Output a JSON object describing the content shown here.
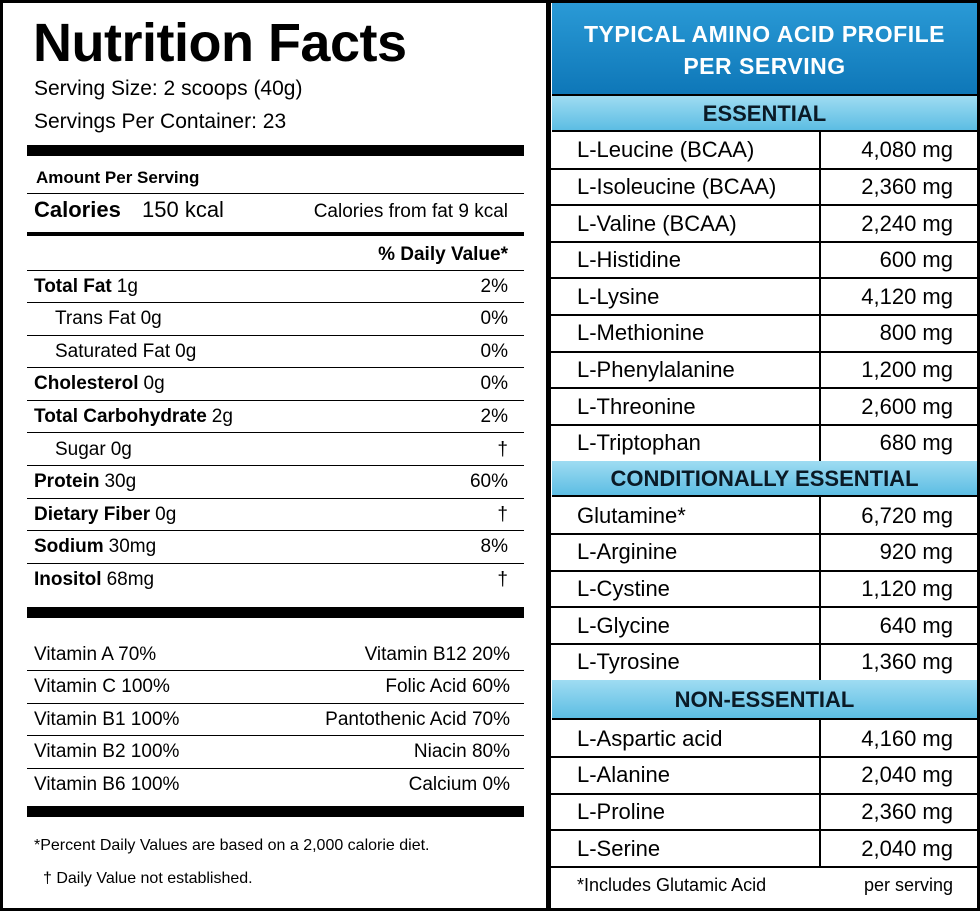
{
  "nutrition": {
    "title": "Nutrition Facts",
    "serving_size": "Serving Size: 2 scoops (40g)",
    "servings_per_container": "Servings Per Container: 23",
    "amount_per_serving": "Amount Per Serving",
    "calories_label": "Calories",
    "calories_value": "150 kcal",
    "calories_from_fat": "Calories from fat 9 kcal",
    "daily_value_header": "% Daily Value*",
    "rows": [
      {
        "name": "Total Fat",
        "amount": "1g",
        "dv": "2%",
        "indent": false
      },
      {
        "name": "Trans Fat",
        "amount": "0g",
        "dv": "0%",
        "indent": true
      },
      {
        "name": "Saturated Fat",
        "amount": "0g",
        "dv": "0%",
        "indent": true
      },
      {
        "name": "Cholesterol",
        "amount": "0g",
        "dv": "0%",
        "indent": false
      },
      {
        "name": "Total Carbohydrate",
        "amount": "2g",
        "dv": "2%",
        "indent": false
      },
      {
        "name": "Sugar",
        "amount": "0g",
        "dv": "†",
        "indent": true
      },
      {
        "name": "Protein",
        "amount": "30g",
        "dv": "60%",
        "indent": false
      },
      {
        "name": "Dietary Fiber",
        "amount": "0g",
        "dv": "†",
        "indent": false
      },
      {
        "name": "Sodium",
        "amount": "30mg",
        "dv": "8%",
        "indent": false
      },
      {
        "name": "Inositol",
        "amount": "68mg",
        "dv": "†",
        "indent": false
      }
    ],
    "vitamins": [
      [
        "Vitamin A 70%",
        "Vitamin B12 20%"
      ],
      [
        "Vitamin C 100%",
        "Folic Acid 60%"
      ],
      [
        "Vitamin B1 100%",
        "Pantothenic Acid 70%"
      ],
      [
        "Vitamin B2 100%",
        "Niacin 80%"
      ],
      [
        "Vitamin B6 100%",
        "Calcium 0%"
      ]
    ],
    "footnotes": [
      "*Percent Daily Values are based on a 2,000 calorie diet.",
      "† Daily Value not established."
    ]
  },
  "amino": {
    "title_lines": [
      "TYPICAL AMINO ACID PROFILE",
      "PER SERVING"
    ],
    "sections": [
      {
        "heading": "ESSENTIAL",
        "rows": [
          [
            "L-Leucine (BCAA)",
            "4,080 mg"
          ],
          [
            "L-Isoleucine (BCAA)",
            "2,360 mg"
          ],
          [
            "L-Valine (BCAA)",
            "2,240 mg"
          ],
          [
            "L-Histidine",
            "600 mg"
          ],
          [
            "L-Lysine",
            "4,120 mg"
          ],
          [
            "L-Methionine",
            "800 mg"
          ],
          [
            "L-Phenylalanine",
            "1,200 mg"
          ],
          [
            "L-Threonine",
            "2,600 mg"
          ],
          [
            "L-Triptophan",
            "680 mg"
          ]
        ]
      },
      {
        "heading": "CONDITIONALLY ESSENTIAL",
        "rows": [
          [
            "Glutamine*",
            "6,720 mg"
          ],
          [
            "L-Arginine",
            "920 mg"
          ],
          [
            "L-Cystine",
            "1,120 mg"
          ],
          [
            "L-Glycine",
            "640 mg"
          ],
          [
            "L-Tyrosine",
            "1,360 mg"
          ]
        ]
      },
      {
        "heading": "NON-ESSENTIAL",
        "rows": [
          [
            "L-Aspartic acid",
            "4,160 mg"
          ],
          [
            "L-Alanine",
            "2,040 mg"
          ],
          [
            "L-Proline",
            "2,360 mg"
          ],
          [
            "L-Serine",
            "2,040 mg"
          ]
        ]
      }
    ],
    "footer_left": "*Includes Glutamic Acid",
    "footer_right": "per serving"
  }
}
